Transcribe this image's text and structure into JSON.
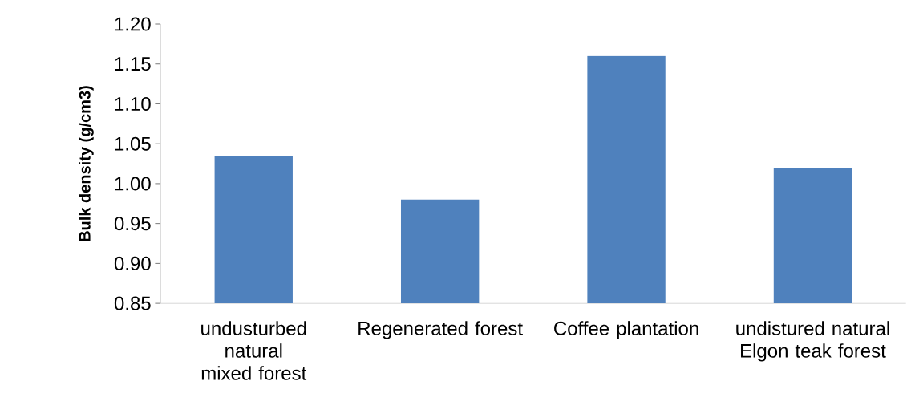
{
  "chart_data": {
    "type": "bar",
    "ylabel": "Bulk density (g/cm3)",
    "categories": [
      "undusturbed natural  mixed forest",
      "Regenerated forest",
      "Coffee plantation",
      "undistured natural  Elgon teak forest"
    ],
    "values": [
      1.034,
      0.98,
      1.16,
      1.02
    ],
    "color": "#4f81bd",
    "ylim": [
      0.85,
      1.2
    ],
    "yticks": [
      0.85,
      {
        "value": 0.9,
        "label": "0.90"
      },
      0.95,
      {
        "value": 1.0,
        "label": "1.00"
      },
      1.05,
      {
        "value": 1.1,
        "label": "1.10"
      },
      1.15,
      {
        "value": 1.2,
        "label": "1.20"
      }
    ],
    "grid": false
  }
}
